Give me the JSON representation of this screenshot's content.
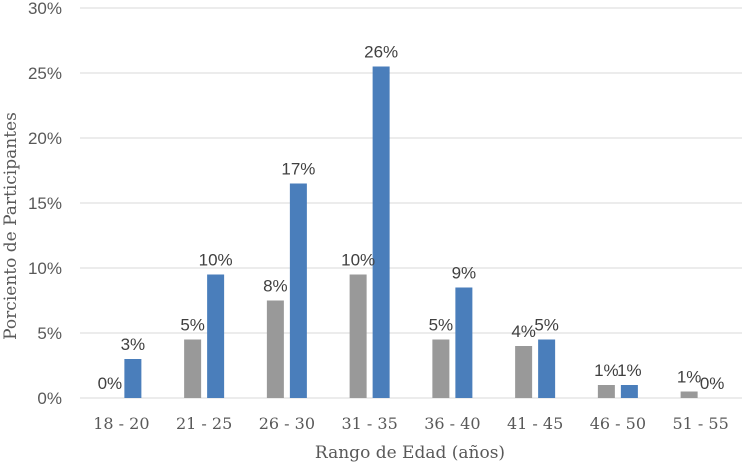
{
  "chart_data": {
    "type": "bar",
    "title": "",
    "xlabel": "Rango de Edad (años)",
    "ylabel": "Porciento de Participantes",
    "ylim": [
      0,
      30
    ],
    "yticks": [
      "0%",
      "5%",
      "10%",
      "15%",
      "20%",
      "25%",
      "30%"
    ],
    "ytick_values": [
      0,
      5,
      10,
      15,
      20,
      25,
      30
    ],
    "grid": true,
    "legend": "none",
    "categories": [
      "18 - 20",
      "21 - 25",
      "26 - 30",
      "31 - 35",
      "36 - 40",
      "41 - 45",
      "46 - 50",
      "51 - 55"
    ],
    "series": [
      {
        "color": "#999999",
        "values": [
          0,
          4.5,
          7.5,
          9.5,
          4.5,
          4,
          1,
          0.5
        ],
        "labels": [
          "0%",
          "5%",
          "8%",
          "10%",
          "5%",
          "4%",
          "1%",
          "1%"
        ]
      },
      {
        "color": "#4a7ebb",
        "values": [
          3,
          9.5,
          16.5,
          25.5,
          8.5,
          4.5,
          1,
          0
        ],
        "labels": [
          "3%",
          "10%",
          "17%",
          "26%",
          "9%",
          "5%",
          "1%",
          "0%"
        ]
      }
    ]
  }
}
